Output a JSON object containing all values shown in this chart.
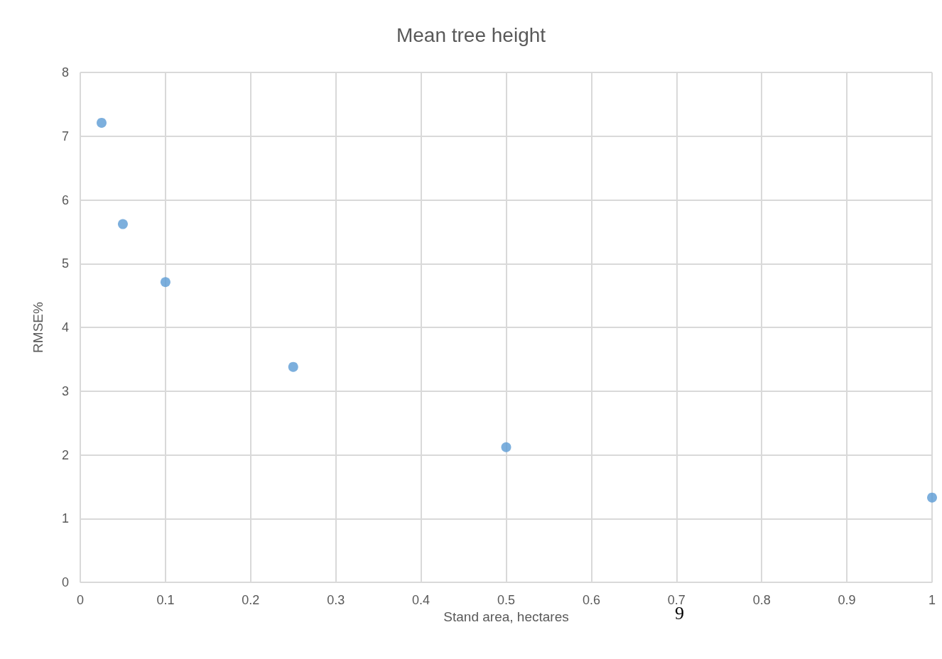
{
  "chart_data": {
    "type": "scatter",
    "title": "Mean tree height",
    "xlabel": "Stand area, hectares",
    "ylabel": "RMSE%",
    "x": [
      0.025,
      0.05,
      0.1,
      0.25,
      0.5,
      1
    ],
    "series": [
      {
        "color": "#5b9bd5",
        "values": [
          7.21,
          5.62,
          4.71,
          3.38,
          2.12,
          1.33
        ]
      }
    ],
    "xlim": [
      0,
      1
    ],
    "xticks": [
      0,
      0.1,
      0.2,
      0.3,
      0.4,
      0.5,
      0.6,
      0.7,
      0.8,
      0.9,
      1
    ],
    "ylim": [
      0,
      8
    ],
    "yticks": [
      0,
      1,
      2,
      3,
      4,
      5,
      6,
      7,
      8
    ],
    "grid": true,
    "marker": "circle",
    "annotations": [
      "9"
    ]
  }
}
